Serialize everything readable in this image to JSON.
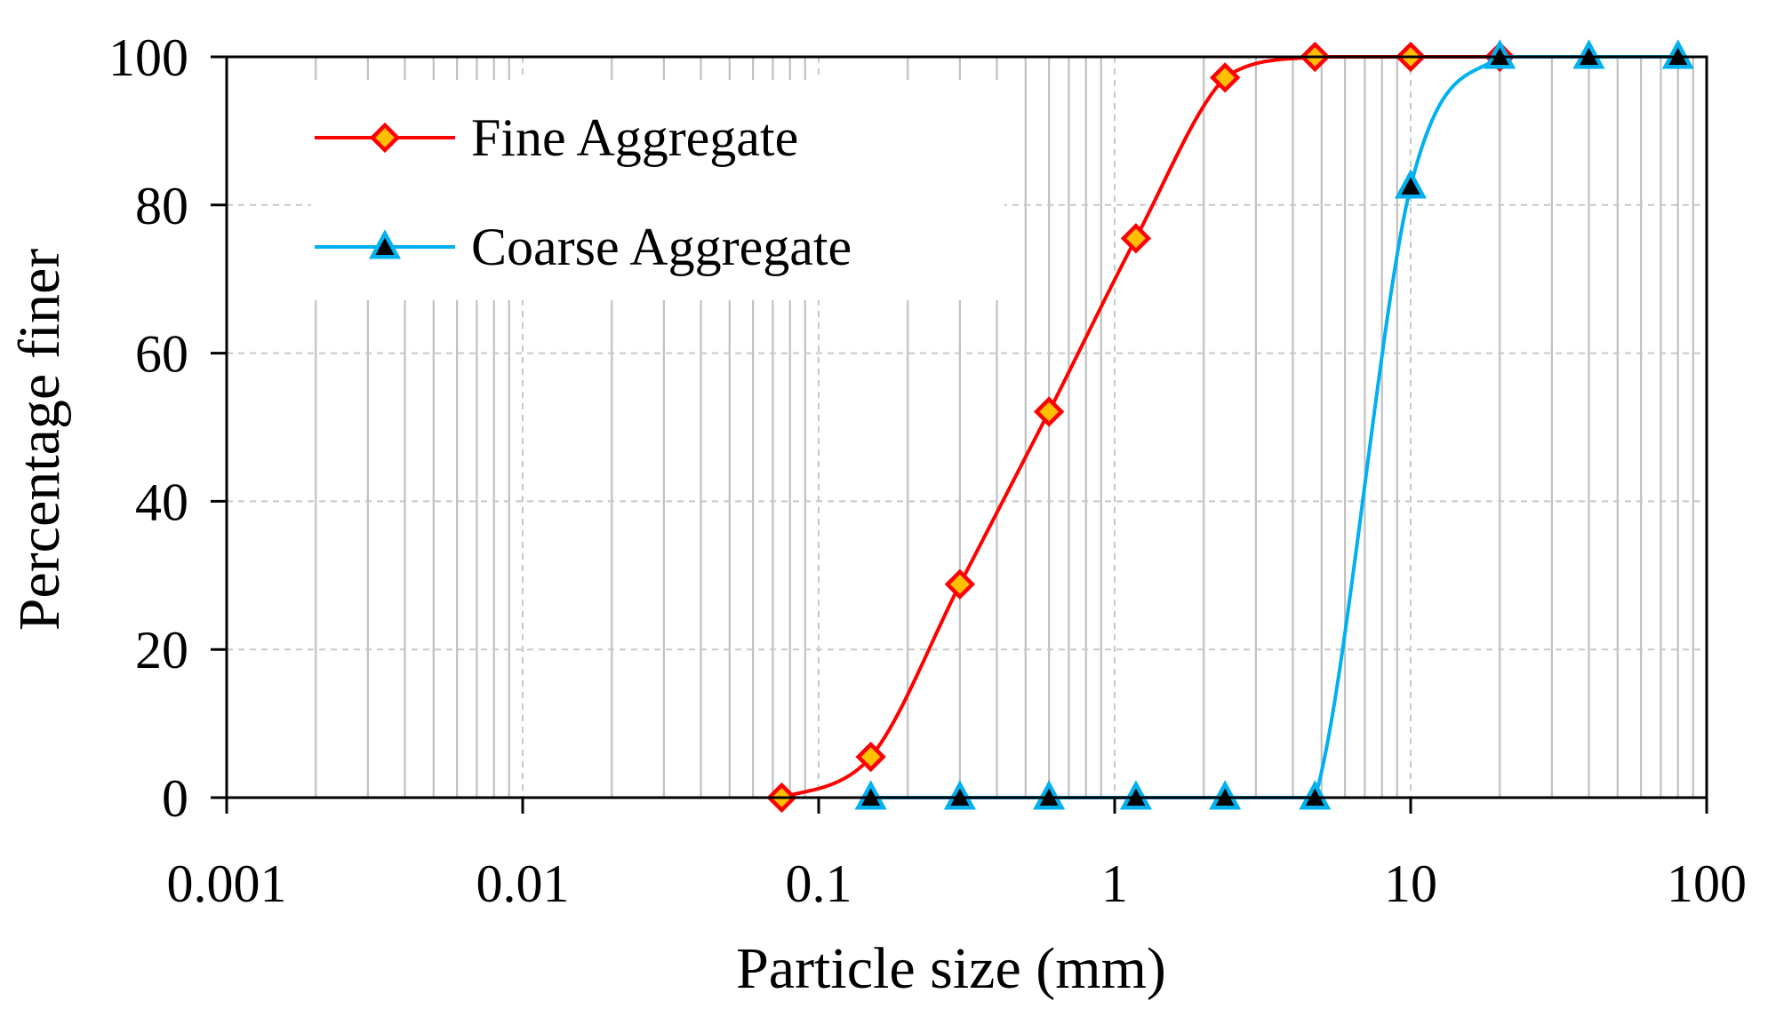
{
  "chart_data": {
    "type": "line",
    "xscale": "log",
    "xlabel": "Particle size (mm)",
    "ylabel": "Percentage finer",
    "xlim": [
      0.001,
      100
    ],
    "ylim": [
      0,
      100
    ],
    "xticks": [
      {
        "value": 0.001,
        "label": "0.001"
      },
      {
        "value": 0.01,
        "label": "0.01"
      },
      {
        "value": 0.1,
        "label": "0.1"
      },
      {
        "value": 1,
        "label": "1"
      },
      {
        "value": 10,
        "label": "10"
      },
      {
        "value": 100,
        "label": "100"
      }
    ],
    "yticks": [
      {
        "value": 0,
        "label": "0"
      },
      {
        "value": 20,
        "label": "20"
      },
      {
        "value": 40,
        "label": "40"
      },
      {
        "value": 60,
        "label": "60"
      },
      {
        "value": 80,
        "label": "80"
      },
      {
        "value": 100,
        "label": "100"
      }
    ],
    "grid": true,
    "legend_position": "top-left",
    "series": [
      {
        "name": "Fine Aggregate",
        "marker": "diamond",
        "line_color": "#ff0000",
        "marker_fill": "#ffc000",
        "marker_edge": "#ff0000",
        "x": [
          0.075,
          0.15,
          0.3,
          0.6,
          1.18,
          2.36,
          4.75,
          10,
          20
        ],
        "y": [
          0,
          5.5,
          28.8,
          52.1,
          75.5,
          97.2,
          100,
          100,
          100
        ]
      },
      {
        "name": "Coarse Aggregate",
        "marker": "triangle",
        "line_color": "#00b0f0",
        "marker_fill": "#000000",
        "marker_edge": "#00b0f0",
        "x": [
          0.15,
          0.3,
          0.6,
          1.18,
          2.36,
          4.75,
          10,
          20,
          40,
          80
        ],
        "y": [
          0,
          0,
          0,
          0,
          0,
          0,
          82.5,
          100,
          100,
          100
        ]
      }
    ]
  }
}
